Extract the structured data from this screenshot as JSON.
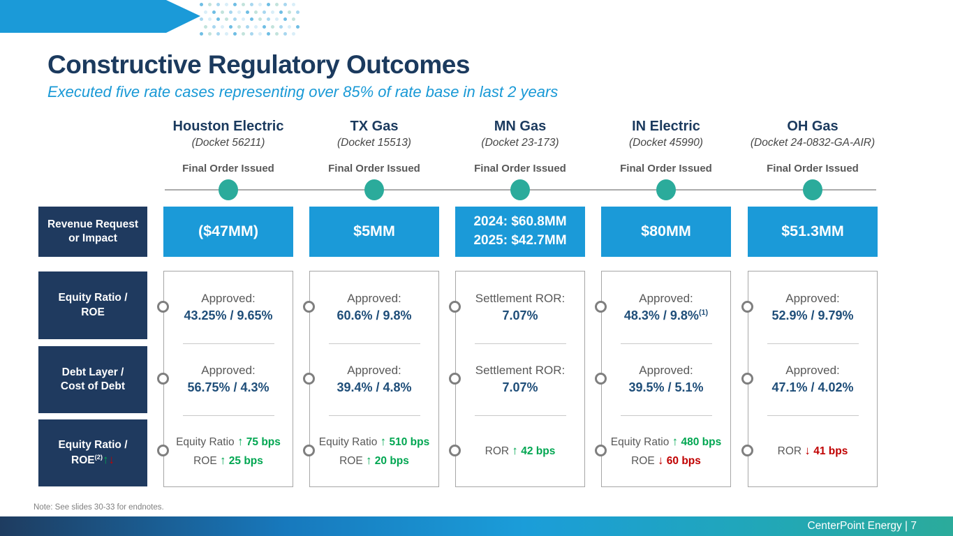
{
  "slide": {
    "title": "Constructive Regulatory Outcomes",
    "subtitle": "Executed five rate cases representing over 85% of rate base in last 2 years",
    "note": "Note: See slides 30-33 for endnotes.",
    "footer_brand": "CenterPoint Energy | 7"
  },
  "icons": {
    "up_arrow": "↑",
    "down_arrow": "↓",
    "timeline_marker": "teal-filled-circle",
    "row_marker": "gray-open-circle"
  },
  "colors": {
    "navy": "#1F3A5F",
    "accent_blue": "#1B9AD8",
    "teal": "#2BAB9B",
    "value_navy": "#1F4E79",
    "green": "#00A651",
    "red": "#C00000",
    "gray_text": "#595959",
    "dot_palette": [
      "#6FBEE4",
      "#C2E3DC",
      "#A8D7EF",
      "#D9EEF8"
    ]
  },
  "row_labels": {
    "revenue": [
      "Revenue Request",
      "or Impact"
    ],
    "row1": [
      "Equity Ratio /",
      "ROE"
    ],
    "row2": [
      "Debt Layer /",
      "Cost of Debt"
    ],
    "row3": {
      "line1": "Equity Ratio /",
      "base": "ROE",
      "sup": "(2)"
    }
  },
  "columns": [
    {
      "name": "Houston Electric",
      "docket": "(Docket 56211)",
      "status": "Final Order Issued",
      "revenue_lines": [
        "($47MM)"
      ],
      "equity_roe": {
        "label": "Approved:",
        "value": "43.25% / 9.65%",
        "sup": ""
      },
      "debt_cost": {
        "label": "Approved:",
        "value": "56.75% / 4.3%"
      },
      "changes": [
        {
          "metric": "Equity Ratio",
          "direction": "up",
          "amount": "75 bps"
        },
        {
          "metric": "ROE",
          "direction": "up",
          "amount": "25 bps"
        }
      ]
    },
    {
      "name": "TX Gas",
      "docket": "(Docket 15513)",
      "status": "Final Order Issued",
      "revenue_lines": [
        "$5MM"
      ],
      "equity_roe": {
        "label": "Approved:",
        "value": "60.6% / 9.8%",
        "sup": ""
      },
      "debt_cost": {
        "label": "Approved:",
        "value": "39.4% / 4.8%"
      },
      "changes": [
        {
          "metric": "Equity Ratio",
          "direction": "up",
          "amount": "510 bps"
        },
        {
          "metric": "ROE",
          "direction": "up",
          "amount": "20 bps"
        }
      ]
    },
    {
      "name": "MN Gas",
      "docket": "(Docket 23-173)",
      "status": "Final Order Issued",
      "revenue_lines": [
        "2024: $60.8MM",
        "2025: $42.7MM"
      ],
      "equity_roe": {
        "label": "Settlement ROR:",
        "value": "7.07%",
        "sup": ""
      },
      "debt_cost": {
        "label": "Settlement ROR:",
        "value": "7.07%"
      },
      "changes": [
        {
          "metric": "ROR",
          "direction": "up",
          "amount": "42 bps"
        }
      ]
    },
    {
      "name": "IN Electric",
      "docket": "(Docket 45990)",
      "status": "Final Order Issued",
      "revenue_lines": [
        "$80MM"
      ],
      "equity_roe": {
        "label": "Approved:",
        "value": "48.3% / 9.8%",
        "sup": "(1)"
      },
      "debt_cost": {
        "label": "Approved:",
        "value": "39.5% / 5.1%"
      },
      "changes": [
        {
          "metric": "Equity Ratio",
          "direction": "up",
          "amount": "480 bps"
        },
        {
          "metric": "ROE",
          "direction": "down",
          "amount": "60 bps"
        }
      ]
    },
    {
      "name": "OH Gas",
      "docket": "(Docket 24-0832-GA-AIR)",
      "status": "Final Order Issued",
      "revenue_lines": [
        "$51.3MM"
      ],
      "equity_roe": {
        "label": "Approved:",
        "value": "52.9% / 9.79%",
        "sup": ""
      },
      "debt_cost": {
        "label": "Approved:",
        "value": "47.1% / 4.02%"
      },
      "changes": [
        {
          "metric": "ROR",
          "direction": "down",
          "amount": "41 bps"
        }
      ]
    }
  ]
}
